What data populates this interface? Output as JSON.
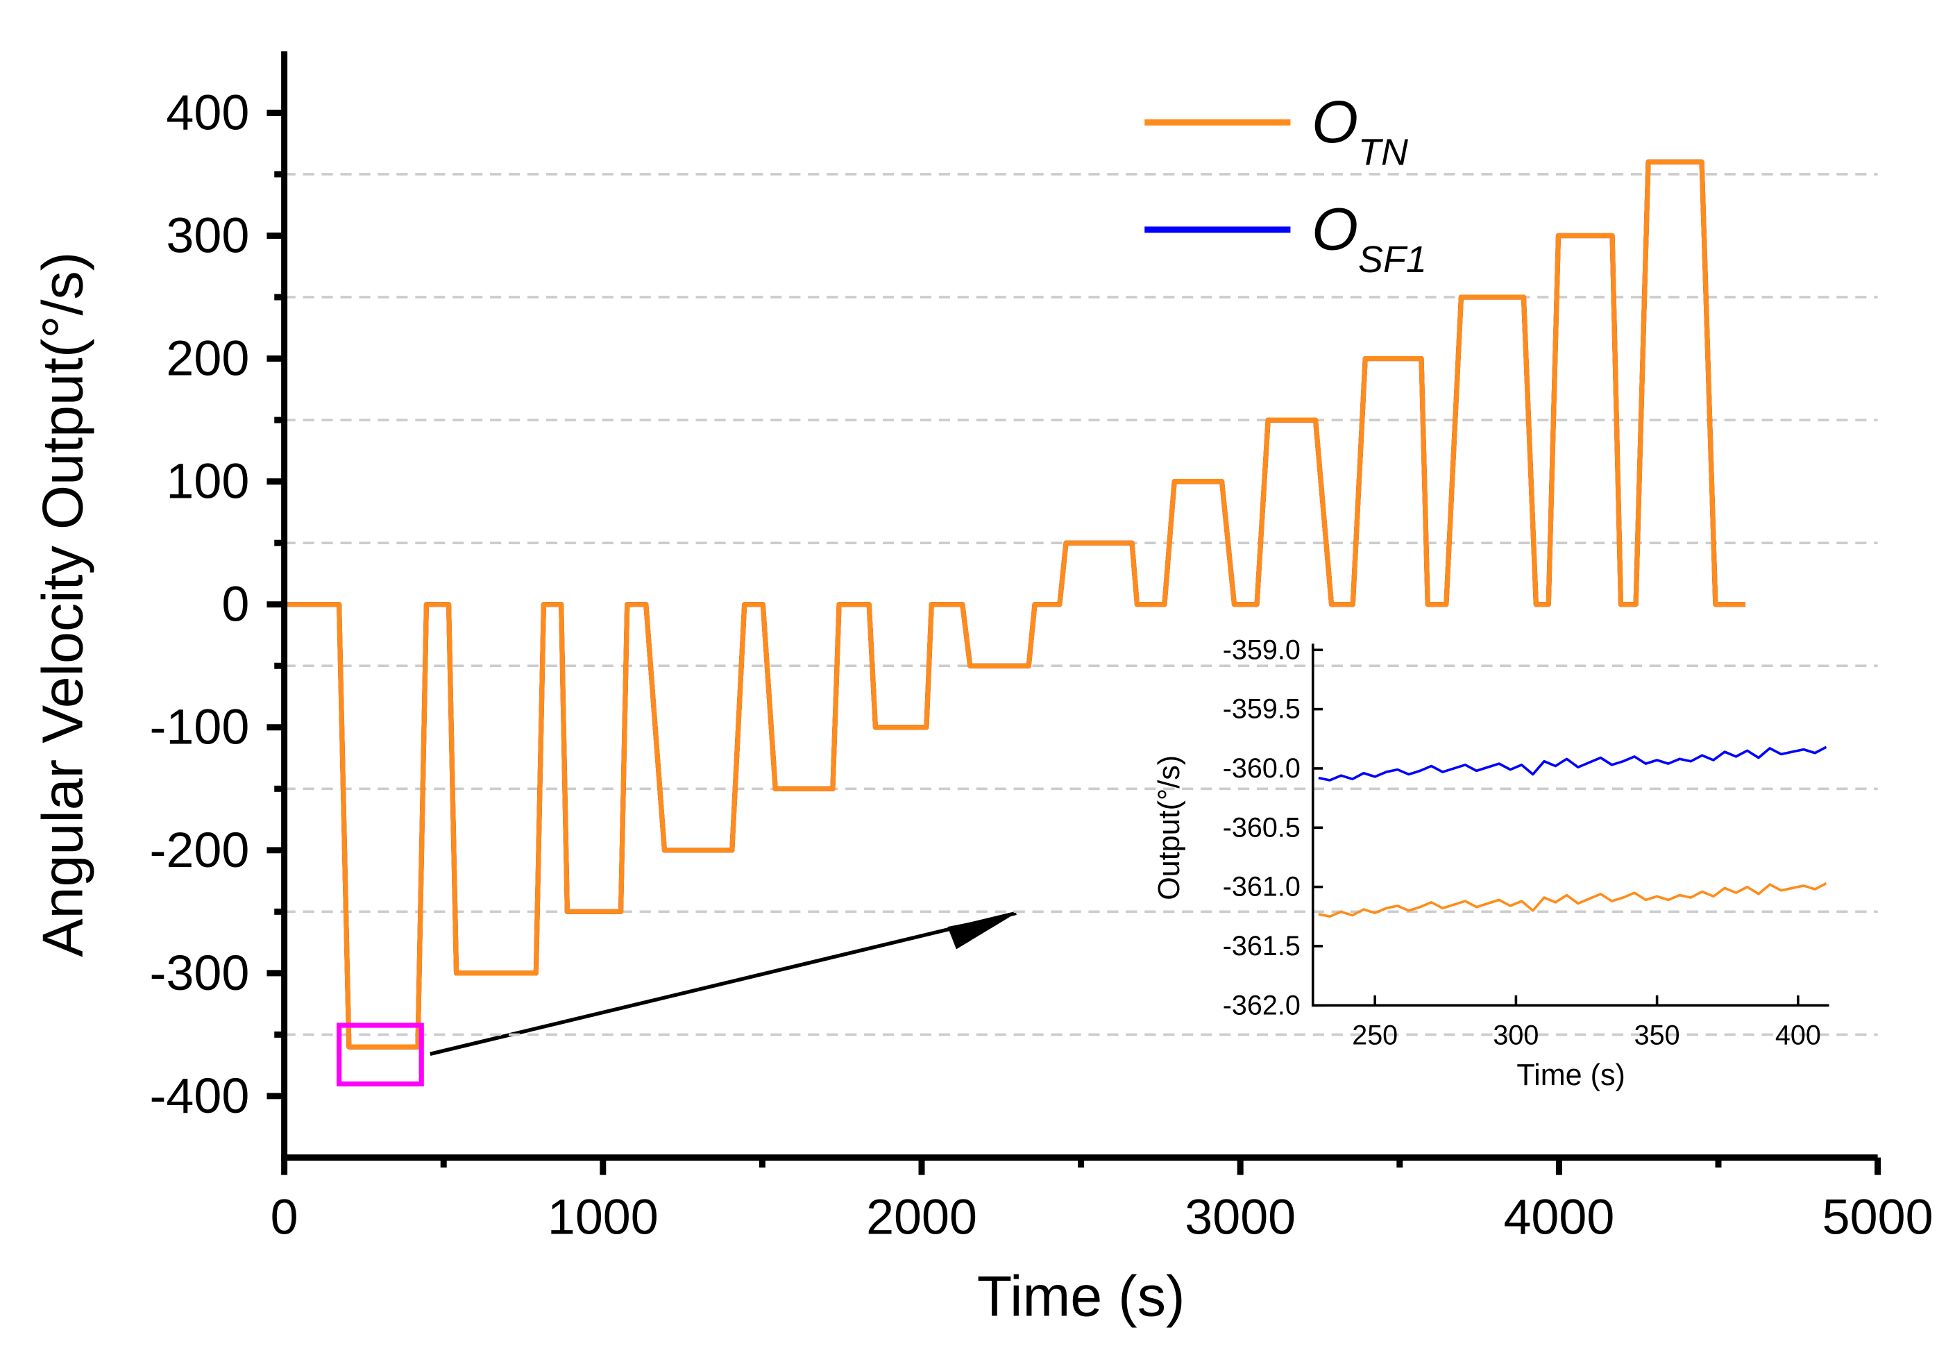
{
  "chart_data": [
    {
      "type": "line",
      "xlabel": "Time (s)",
      "ylabel": "Angular Velocity Output(°/s)",
      "x": [
        0,
        172,
        203,
        419,
        446,
        516,
        540,
        790,
        814,
        869,
        888,
        1056,
        1076,
        1135,
        1193,
        1405,
        1444,
        1502,
        1541,
        1721,
        1741,
        1835,
        1855,
        2015,
        2031,
        2128,
        2152,
        2336,
        2355,
        2433,
        2453,
        2660,
        2676,
        2762,
        2793,
        2942,
        2981,
        3052,
        3087,
        3236,
        3286,
        3353,
        3392,
        3568,
        3588,
        3646,
        3693,
        3889,
        3928,
        3967,
        3998,
        4167,
        4194,
        4241,
        4280,
        4448,
        4491,
        4585
      ],
      "series": [
        {
          "name": "O",
          "name_sub": "SF1",
          "color": "#0000ff",
          "values": [
            0,
            0,
            -360,
            -360,
            0,
            0,
            -300,
            -300,
            0,
            0,
            -250,
            -250,
            0,
            0,
            -200,
            -200,
            0,
            0,
            -150,
            -150,
            0,
            0,
            -100,
            -100,
            0,
            0,
            -50,
            -50,
            0,
            0,
            50,
            50,
            0,
            0,
            100,
            100,
            0,
            0,
            150,
            150,
            0,
            0,
            200,
            200,
            0,
            0,
            250,
            250,
            0,
            0,
            300,
            300,
            0,
            0,
            360,
            360,
            0,
            0
          ]
        },
        {
          "name": "O",
          "name_sub": "TN",
          "color": "#ff8c1a",
          "values": [
            0,
            0,
            -360,
            -360,
            0,
            0,
            -300,
            -300,
            0,
            0,
            -250,
            -250,
            0,
            0,
            -200,
            -200,
            0,
            0,
            -150,
            -150,
            0,
            0,
            -100,
            -100,
            0,
            0,
            -50,
            -50,
            0,
            0,
            50,
            50,
            0,
            0,
            100,
            100,
            0,
            0,
            150,
            150,
            0,
            0,
            200,
            200,
            0,
            0,
            250,
            250,
            0,
            0,
            300,
            300,
            0,
            0,
            360,
            360,
            0,
            0
          ]
        }
      ],
      "legend_order": [
        1,
        0
      ],
      "xlim": [
        0,
        5000
      ],
      "xticks": [
        0,
        1000,
        2000,
        3000,
        4000,
        5000
      ],
      "xminor": [
        500,
        1500,
        2500,
        3500,
        4500
      ],
      "ylim": [
        -450,
        450
      ],
      "yticks": [
        -400,
        -300,
        -200,
        -100,
        0,
        100,
        200,
        300,
        400
      ],
      "grid": [
        -350,
        -250,
        -150,
        -50,
        50,
        150,
        250,
        350
      ]
    },
    {
      "type": "line",
      "xlabel": "Time (s)",
      "ylabel": "Output(°/s)",
      "x": [
        230,
        234,
        238,
        242,
        246,
        250,
        254,
        258,
        262,
        266,
        270,
        274,
        278,
        282,
        286,
        290,
        294,
        298,
        302,
        306,
        310,
        314,
        318,
        322,
        326,
        330,
        334,
        338,
        342,
        346,
        350,
        354,
        358,
        362,
        366,
        370,
        374,
        378,
        382,
        386,
        390,
        394,
        398,
        402,
        406,
        410
      ],
      "series": [
        {
          "name": "O",
          "name_sub": "SF1",
          "color": "#0000ff",
          "values": [
            -360.08,
            -360.1,
            -360.06,
            -360.09,
            -360.04,
            -360.07,
            -360.03,
            -360.01,
            -360.05,
            -360.02,
            -359.98,
            -360.03,
            -360.0,
            -359.97,
            -360.02,
            -359.99,
            -359.96,
            -360.01,
            -359.97,
            -360.05,
            -359.94,
            -359.98,
            -359.92,
            -359.99,
            -359.95,
            -359.91,
            -359.97,
            -359.94,
            -359.9,
            -359.96,
            -359.93,
            -359.96,
            -359.92,
            -359.94,
            -359.89,
            -359.93,
            -359.86,
            -359.9,
            -359.85,
            -359.91,
            -359.83,
            -359.88,
            -359.86,
            -359.84,
            -359.87,
            -359.82
          ]
        },
        {
          "name": "O",
          "name_sub": "TN",
          "color": "#ff8c1a",
          "values": [
            -361.23,
            -361.25,
            -361.21,
            -361.24,
            -361.19,
            -361.22,
            -361.18,
            -361.16,
            -361.2,
            -361.17,
            -361.13,
            -361.18,
            -361.15,
            -361.12,
            -361.17,
            -361.14,
            -361.11,
            -361.16,
            -361.12,
            -361.2,
            -361.09,
            -361.13,
            -361.07,
            -361.14,
            -361.1,
            -361.06,
            -361.12,
            -361.09,
            -361.05,
            -361.11,
            -361.08,
            -361.11,
            -361.07,
            -361.09,
            -361.04,
            -361.08,
            -361.01,
            -361.05,
            -361.0,
            -361.06,
            -360.98,
            -361.03,
            -361.01,
            -360.99,
            -361.02,
            -360.97
          ]
        }
      ],
      "xlim": [
        228,
        411
      ],
      "xticks": [
        250,
        300,
        350,
        400
      ],
      "ylim": [
        -362,
        -359
      ],
      "yticks": [
        {
          "value": -362,
          "label": "-362.0"
        },
        {
          "value": -361.5,
          "label": "-361.5"
        },
        {
          "value": -361,
          "label": "-361.0"
        },
        {
          "value": -360.5,
          "label": "-360.5"
        },
        {
          "value": -360,
          "label": "-360.0"
        },
        {
          "value": -359.5,
          "label": "-359.5"
        },
        {
          "value": -359,
          "label": "-359.0"
        }
      ]
    }
  ]
}
